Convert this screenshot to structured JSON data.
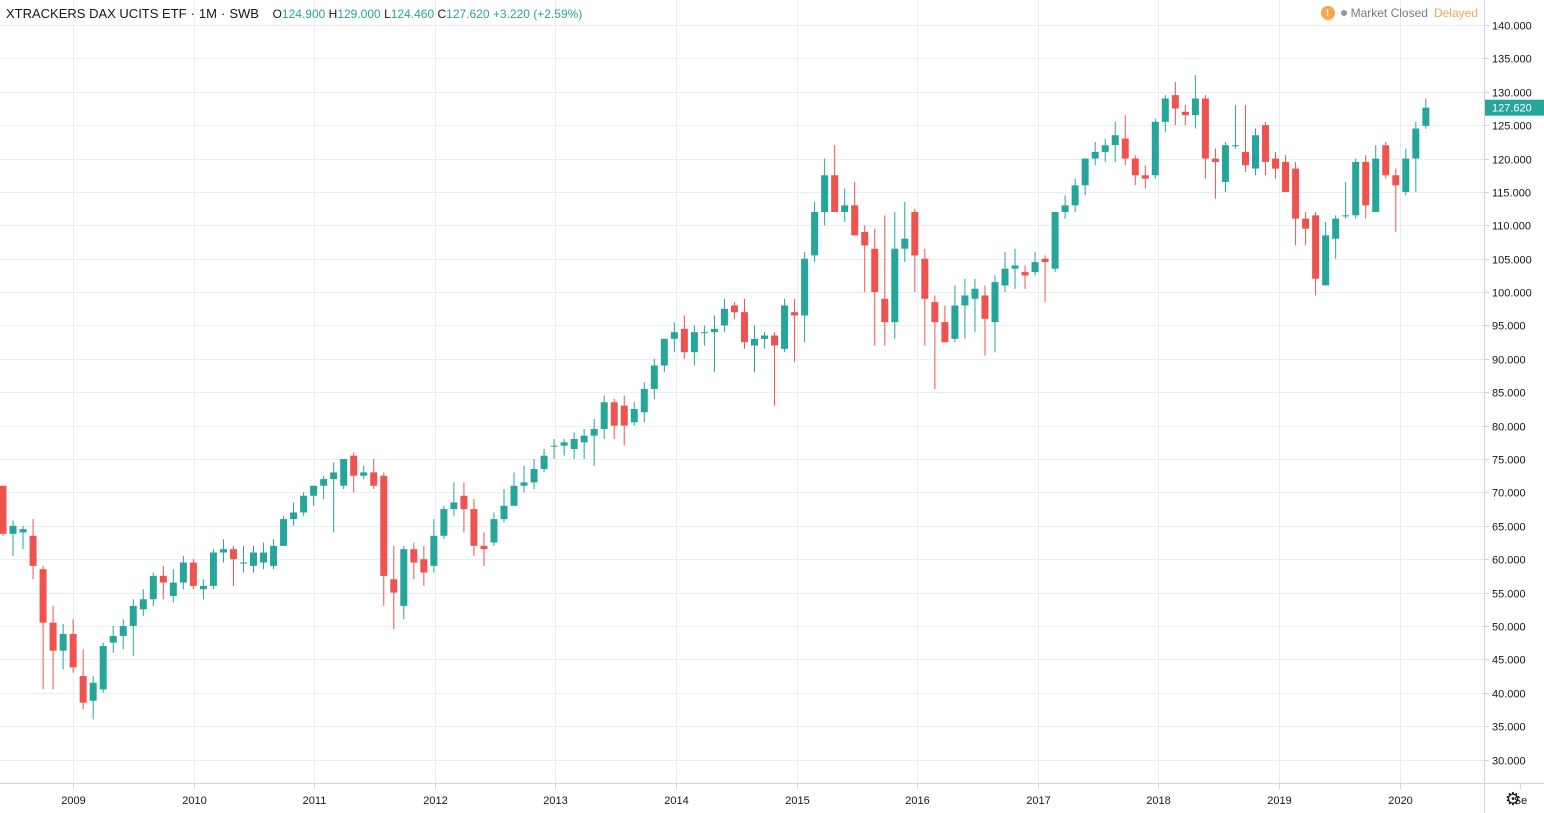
{
  "header": {
    "symbol": "XTRACKERS DAX UCITS ETF",
    "interval": "1M",
    "exchange": "SWB",
    "open_key": "O",
    "open": "124.900",
    "high_key": "H",
    "high": "129.000",
    "low_key": "L",
    "low": "124.460",
    "close_key": "C",
    "close": "127.620",
    "change": "+3.220 (+2.59%)"
  },
  "status": {
    "icon": "warning-icon",
    "market_state": "Market Closed",
    "delay": "Delayed"
  },
  "colors": {
    "up": "#26a69a",
    "down": "#ef5350",
    "grid": "#e9eef2",
    "axis": "#d1d4dc",
    "warn": "#f7a74b"
  },
  "chart_data": {
    "type": "candlestick",
    "interval": "1M",
    "y_ticks": [
      "30.000",
      "35.000",
      "40.000",
      "45.000",
      "50.000",
      "55.000",
      "60.000",
      "65.000",
      "70.000",
      "75.000",
      "80.000",
      "85.000",
      "90.000",
      "95.000",
      "100.000",
      "105.000",
      "110.000",
      "115.000",
      "120.000",
      "125.000",
      "130.000",
      "135.000",
      "140.000"
    ],
    "x_ticks": [
      "2009",
      "2010",
      "2011",
      "2012",
      "2013",
      "2014",
      "2015",
      "2016",
      "2017",
      "2018",
      "2019",
      "2020",
      "Se"
    ],
    "last_price_label": "127.620",
    "ylim": [
      25,
      142
    ],
    "x_start": "2008-05",
    "candles": [
      [
        71.0,
        71.0,
        63.5,
        63.8
      ],
      [
        63.8,
        65.8,
        60.5,
        65.0
      ],
      [
        64.0,
        65.0,
        61.5,
        64.5
      ],
      [
        63.5,
        66.0,
        57.0,
        59.0
      ],
      [
        58.5,
        59.0,
        40.5,
        50.5
      ],
      [
        50.5,
        53.0,
        40.5,
        46.3
      ],
      [
        46.3,
        50.3,
        43.5,
        48.8
      ],
      [
        48.8,
        51.0,
        43.0,
        43.8
      ],
      [
        42.5,
        46.5,
        37.5,
        38.5
      ],
      [
        38.8,
        42.5,
        36.0,
        41.5
      ],
      [
        40.5,
        47.5,
        40.0,
        47.0
      ],
      [
        47.5,
        50.0,
        46.0,
        48.5
      ],
      [
        48.5,
        51.0,
        46.5,
        50.0
      ],
      [
        50.0,
        54.0,
        45.5,
        53.0
      ],
      [
        52.5,
        55.5,
        51.5,
        54.0
      ],
      [
        54.0,
        58.0,
        53.0,
        57.5
      ],
      [
        57.5,
        59.0,
        54.0,
        56.5
      ],
      [
        54.5,
        58.5,
        53.5,
        56.5
      ],
      [
        56.5,
        60.5,
        55.5,
        59.5
      ],
      [
        59.5,
        60.0,
        55.5,
        56.0
      ],
      [
        55.5,
        57.0,
        54.0,
        56.0
      ],
      [
        56.0,
        61.5,
        55.5,
        61.0
      ],
      [
        61.0,
        63.0,
        59.5,
        61.5
      ],
      [
        61.5,
        62.0,
        56.0,
        60.0
      ],
      [
        59.5,
        62.0,
        58.0,
        59.5
      ],
      [
        59.0,
        62.0,
        58.0,
        61.0
      ],
      [
        59.5,
        62.5,
        58.5,
        61.0
      ],
      [
        59.0,
        63.0,
        58.5,
        62.0
      ],
      [
        62.0,
        66.5,
        62.0,
        66.0
      ],
      [
        66.0,
        68.5,
        65.0,
        67.0
      ],
      [
        67.0,
        70.0,
        66.5,
        69.5
      ],
      [
        69.5,
        71.0,
        68.0,
        71.0
      ],
      [
        71.0,
        72.5,
        69.0,
        72.0
      ],
      [
        72.0,
        74.5,
        64.0,
        73.0
      ],
      [
        71.0,
        75.0,
        70.5,
        75.0
      ],
      [
        75.5,
        76.0,
        70.0,
        72.5
      ],
      [
        72.5,
        74.0,
        72.0,
        73.0
      ],
      [
        73.0,
        75.0,
        70.5,
        71.0
      ],
      [
        72.5,
        73.0,
        53.0,
        57.5
      ],
      [
        57.0,
        62.0,
        49.5,
        55.0
      ],
      [
        53.0,
        62.0,
        51.0,
        61.5
      ],
      [
        61.5,
        62.5,
        57.0,
        59.5
      ],
      [
        60.0,
        62.0,
        56.0,
        58.0
      ],
      [
        59.0,
        66.0,
        58.0,
        63.5
      ],
      [
        63.5,
        68.0,
        63.0,
        67.5
      ],
      [
        67.5,
        71.5,
        66.5,
        68.5
      ],
      [
        69.5,
        71.5,
        64.0,
        67.5
      ],
      [
        67.5,
        69.0,
        60.5,
        62.0
      ],
      [
        62.0,
        64.0,
        59.0,
        61.5
      ],
      [
        62.5,
        67.0,
        62.0,
        66.0
      ],
      [
        66.0,
        70.5,
        65.5,
        68.0
      ],
      [
        68.0,
        73.0,
        68.0,
        71.0
      ],
      [
        71.0,
        74.0,
        70.0,
        71.5
      ],
      [
        71.5,
        75.0,
        70.5,
        73.5
      ],
      [
        73.5,
        76.5,
        73.0,
        75.5
      ],
      [
        77.0,
        78.0,
        75.0,
        77.0
      ],
      [
        77.0,
        78.0,
        75.5,
        77.5
      ],
      [
        76.5,
        79.0,
        75.0,
        78.0
      ],
      [
        77.5,
        79.5,
        75.0,
        78.5
      ],
      [
        78.5,
        81.0,
        74.0,
        79.5
      ],
      [
        79.5,
        84.5,
        78.0,
        83.5
      ],
      [
        83.5,
        84.0,
        78.0,
        80.0
      ],
      [
        83.0,
        84.5,
        77.0,
        80.0
      ],
      [
        80.5,
        83.5,
        80.0,
        82.5
      ],
      [
        82.0,
        86.5,
        80.5,
        85.5
      ],
      [
        85.5,
        90.0,
        84.0,
        89.0
      ],
      [
        89.0,
        93.0,
        88.0,
        93.0
      ],
      [
        93.0,
        95.5,
        91.0,
        94.0
      ],
      [
        94.5,
        96.5,
        90.0,
        91.0
      ],
      [
        91.0,
        95.0,
        89.0,
        94.0
      ],
      [
        94.0,
        95.0,
        92.0,
        94.0
      ],
      [
        94.0,
        96.5,
        88.0,
        94.5
      ],
      [
        95.0,
        99.0,
        94.0,
        97.5
      ],
      [
        98.0,
        98.5,
        96.0,
        97.0
      ],
      [
        97.0,
        99.0,
        91.5,
        92.5
      ],
      [
        92.0,
        95.0,
        88.0,
        93.0
      ],
      [
        93.0,
        94.0,
        91.5,
        93.5
      ],
      [
        93.5,
        94.0,
        83.0,
        92.0
      ],
      [
        91.5,
        99.0,
        91.0,
        98.0
      ],
      [
        97.0,
        99.0,
        89.5,
        96.5
      ],
      [
        96.5,
        106.0,
        92.5,
        105.0
      ],
      [
        105.5,
        113.5,
        104.5,
        112.0
      ],
      [
        112.0,
        120.0,
        110.0,
        117.5
      ],
      [
        117.5,
        122.0,
        112.0,
        112.0
      ],
      [
        112.0,
        115.5,
        110.5,
        113.0
      ],
      [
        113.0,
        116.5,
        109.0,
        108.5
      ],
      [
        109.0,
        110.0,
        100.0,
        107.0
      ],
      [
        106.5,
        109.5,
        92.0,
        100.0
      ],
      [
        99.0,
        111.5,
        92.0,
        95.5
      ],
      [
        95.5,
        112.0,
        93.0,
        106.5
      ],
      [
        106.5,
        113.5,
        104.5,
        108.0
      ],
      [
        112.0,
        112.5,
        100.0,
        105.5
      ],
      [
        105.0,
        106.5,
        92.0,
        99.0
      ],
      [
        98.5,
        99.5,
        85.5,
        95.5
      ],
      [
        95.5,
        98.0,
        93.0,
        92.5
      ],
      [
        93.0,
        101.0,
        92.5,
        98.0
      ],
      [
        98.0,
        102.0,
        93.0,
        99.5
      ],
      [
        99.0,
        102.0,
        94.0,
        100.5
      ],
      [
        99.5,
        101.0,
        90.5,
        96.0
      ],
      [
        95.5,
        102.5,
        91.0,
        101.5
      ],
      [
        101.0,
        106.0,
        100.0,
        103.5
      ],
      [
        103.5,
        106.5,
        100.5,
        104.0
      ],
      [
        103.0,
        104.0,
        100.5,
        102.5
      ],
      [
        103.0,
        106.0,
        102.5,
        104.5
      ],
      [
        105.0,
        105.5,
        98.5,
        104.5
      ],
      [
        103.5,
        112.0,
        103.0,
        112.0
      ],
      [
        112.0,
        114.5,
        111.0,
        113.0
      ],
      [
        113.0,
        117.0,
        112.0,
        116.0
      ],
      [
        116.0,
        119.5,
        114.5,
        120.0
      ],
      [
        120.0,
        122.5,
        119.0,
        121.0
      ],
      [
        121.0,
        123.0,
        119.5,
        122.0
      ],
      [
        122.0,
        125.5,
        119.5,
        123.5
      ],
      [
        123.0,
        126.5,
        119.0,
        120.0
      ],
      [
        120.0,
        120.5,
        116.0,
        117.5
      ],
      [
        117.5,
        119.0,
        115.5,
        117.0
      ],
      [
        117.5,
        126.0,
        117.0,
        125.5
      ],
      [
        125.5,
        129.5,
        124.0,
        129.0
      ],
      [
        129.5,
        131.5,
        125.0,
        127.5
      ],
      [
        127.0,
        128.0,
        125.0,
        126.5
      ],
      [
        126.5,
        132.5,
        124.5,
        129.0
      ],
      [
        129.0,
        129.5,
        117.0,
        120.0
      ],
      [
        120.0,
        121.5,
        114.0,
        119.5
      ],
      [
        116.5,
        122.5,
        115.0,
        122.0
      ],
      [
        122.0,
        128.0,
        121.5,
        122.0
      ],
      [
        121.0,
        128.0,
        118.0,
        119.0
      ],
      [
        118.5,
        124.5,
        117.5,
        123.5
      ],
      [
        125.0,
        125.5,
        117.5,
        119.5
      ],
      [
        120.0,
        121.0,
        117.0,
        118.5
      ],
      [
        119.5,
        120.5,
        115.0,
        115.0
      ],
      [
        118.5,
        119.5,
        107.0,
        111.0
      ],
      [
        111.0,
        112.0,
        107.0,
        109.5
      ],
      [
        111.5,
        112.0,
        99.5,
        102.0
      ],
      [
        101.0,
        110.5,
        101.0,
        108.5
      ],
      [
        108.0,
        111.5,
        105.0,
        111.0
      ],
      [
        111.5,
        116.5,
        111.0,
        111.5
      ],
      [
        111.5,
        120.0,
        111.0,
        119.5
      ],
      [
        119.5,
        120.5,
        111.0,
        113.0
      ],
      [
        112.0,
        122.0,
        112.0,
        120.0
      ],
      [
        122.0,
        122.5,
        117.0,
        117.5
      ],
      [
        117.5,
        118.5,
        109.0,
        116.0
      ],
      [
        115.0,
        121.5,
        114.5,
        120.0
      ],
      [
        120.0,
        125.5,
        115.0,
        124.5
      ],
      [
        124.9,
        129.0,
        124.46,
        127.62
      ]
    ]
  }
}
